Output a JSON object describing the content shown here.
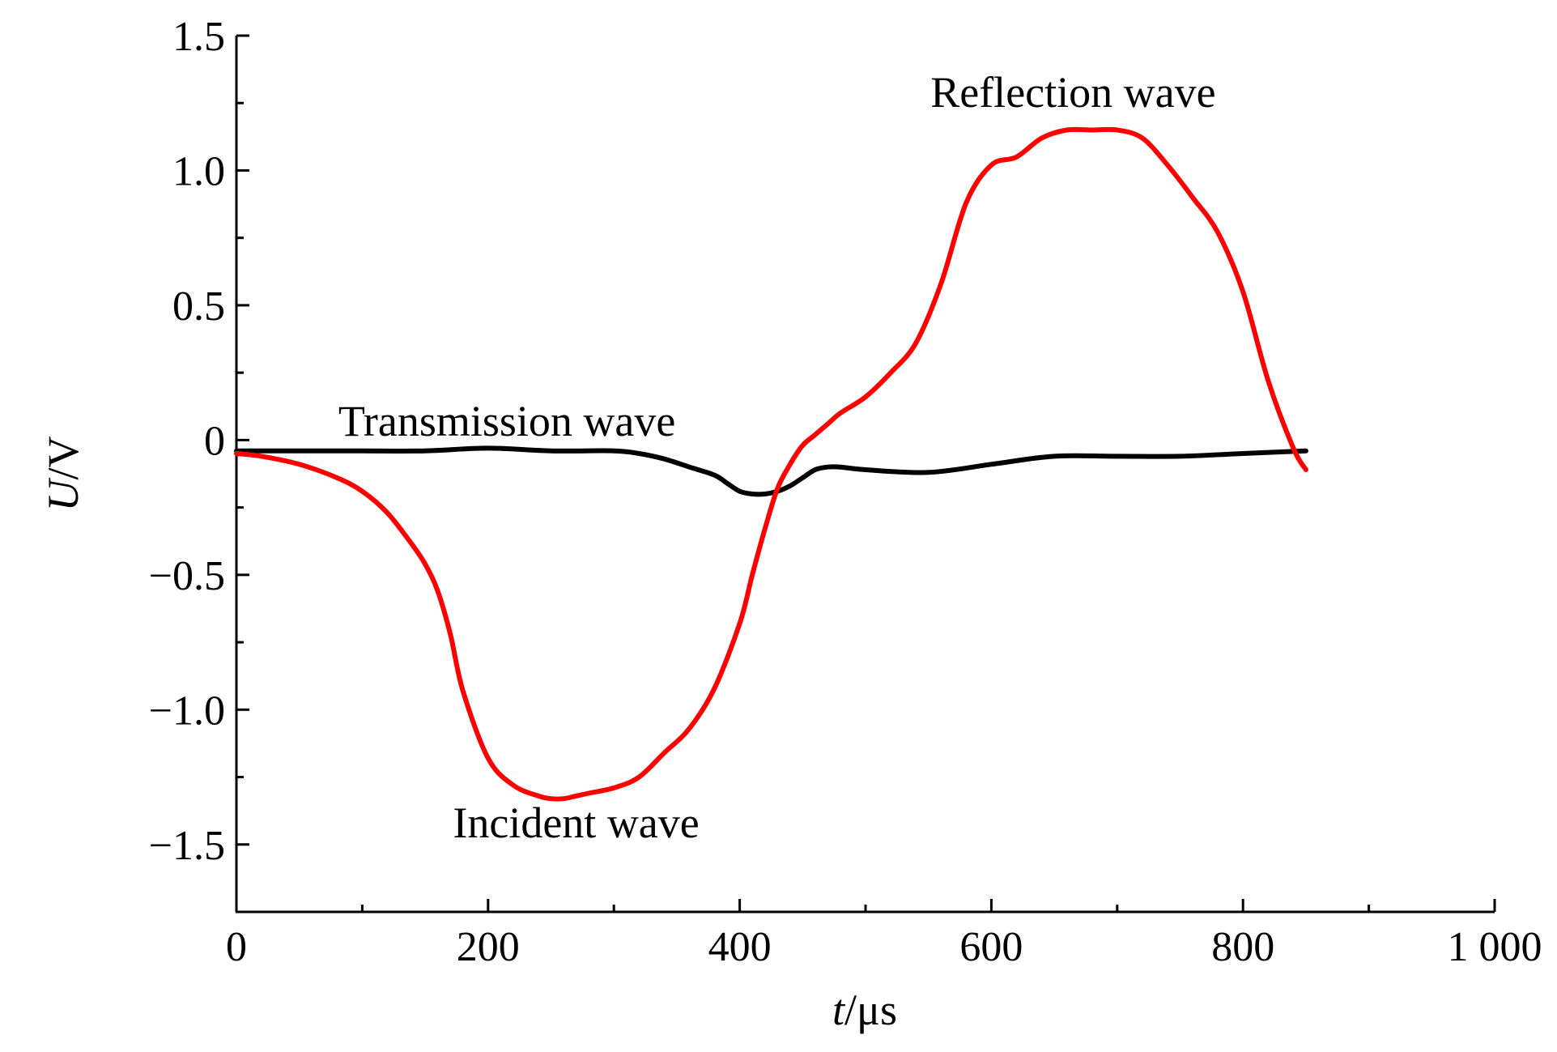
{
  "chart_data": {
    "type": "line",
    "xlabel_italic": "t",
    "xlabel_unit": "/μs",
    "ylabel_italic": "U",
    "ylabel_unit": "/V",
    "xlim": [
      0,
      1000
    ],
    "ylim": [
      -1.75,
      1.5
    ],
    "x_ticks": [
      0,
      200,
      400,
      600,
      800,
      1000
    ],
    "x_tick_labels": [
      "0",
      "200",
      "400",
      "600",
      "800",
      "1 000"
    ],
    "y_ticks": [
      1.5,
      1.0,
      0.5,
      0,
      -0.5,
      -1.0,
      -1.5
    ],
    "y_tick_labels": [
      "1.5",
      "1.0",
      "0.5",
      "0",
      "−0.5",
      "−1.0",
      "−1.5"
    ],
    "grid": false,
    "colors": {
      "incident_reflection": "#ff0000",
      "transmission": "#000000"
    },
    "series": [
      {
        "key": "incident_reflection",
        "x": [
          0,
          20,
          50,
          80,
          100,
          120,
          140,
          150,
          160,
          170,
          180,
          200,
          220,
          240,
          250,
          260,
          270,
          280,
          300,
          320,
          340,
          360,
          380,
          400,
          410,
          420,
          430,
          440,
          450,
          460,
          470,
          480,
          500,
          520,
          540,
          560,
          580,
          600,
          620,
          640,
          660,
          680,
          700,
          720,
          740,
          760,
          780,
          800,
          820,
          840,
          850
        ],
        "y": [
          -0.05,
          -0.06,
          -0.09,
          -0.14,
          -0.19,
          -0.27,
          -0.39,
          -0.46,
          -0.56,
          -0.72,
          -0.93,
          -1.18,
          -1.28,
          -1.32,
          -1.33,
          -1.33,
          -1.32,
          -1.31,
          -1.29,
          -1.25,
          -1.16,
          -1.07,
          -0.92,
          -0.68,
          -0.5,
          -0.33,
          -0.18,
          -0.09,
          -0.02,
          0.02,
          0.06,
          0.1,
          0.16,
          0.25,
          0.36,
          0.58,
          0.88,
          1.02,
          1.05,
          1.12,
          1.15,
          1.15,
          1.15,
          1.12,
          1.02,
          0.9,
          0.77,
          0.55,
          0.22,
          -0.03,
          -0.11
        ]
      },
      {
        "key": "transmission",
        "x": [
          0,
          50,
          100,
          150,
          200,
          250,
          300,
          320,
          340,
          360,
          380,
          390,
          400,
          410,
          420,
          430,
          440,
          450,
          460,
          470,
          480,
          500,
          550,
          600,
          650,
          700,
          750,
          800,
          850
        ],
        "y": [
          -0.04,
          -0.04,
          -0.04,
          -0.04,
          -0.03,
          -0.04,
          -0.04,
          -0.05,
          -0.07,
          -0.1,
          -0.13,
          -0.16,
          -0.19,
          -0.2,
          -0.2,
          -0.19,
          -0.17,
          -0.14,
          -0.11,
          -0.1,
          -0.1,
          -0.11,
          -0.12,
          -0.09,
          -0.06,
          -0.06,
          -0.06,
          -0.05,
          -0.04
        ]
      }
    ],
    "annotations": [
      {
        "text": "Reflection wave",
        "x": 665,
        "y": 1.29
      },
      {
        "text": "Transmission wave",
        "x": 215,
        "y": 0.07
      },
      {
        "text": "Incident wave",
        "x": 270,
        "y": -1.42
      }
    ]
  }
}
